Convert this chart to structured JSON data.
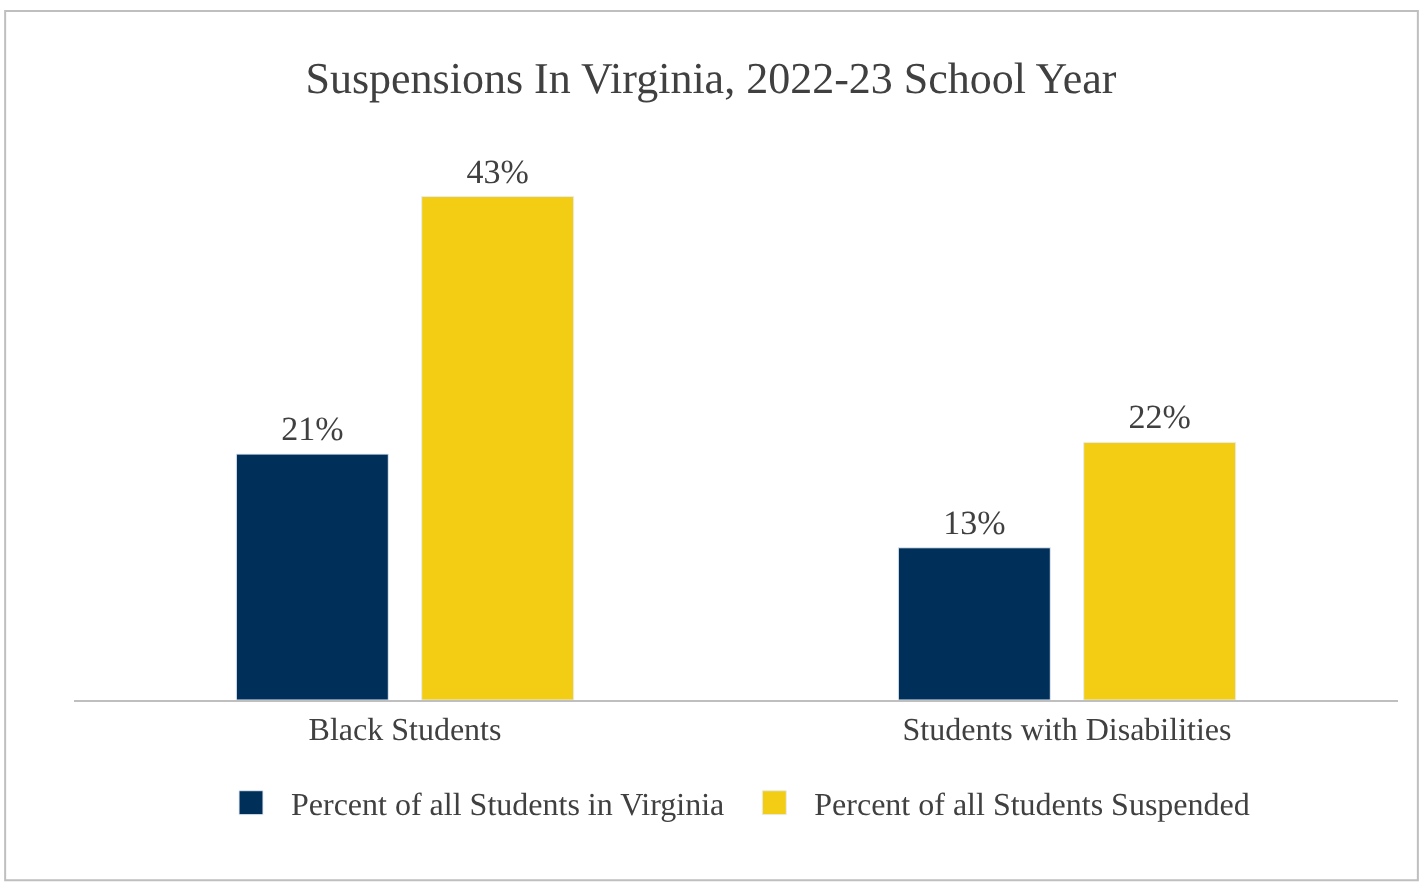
{
  "chart_data": {
    "type": "bar",
    "title": "Suspensions In Virginia, 2022-23 School Year",
    "categories": [
      "Black Students",
      "Students with Disabilities"
    ],
    "series": [
      {
        "name": "Percent of all Students in Virginia",
        "color": "#00305a",
        "values": [
          21,
          13
        ],
        "value_labels": [
          "21%",
          "13%"
        ]
      },
      {
        "name": "Percent of all Students Suspended",
        "color": "#f2cd14",
        "values": [
          43,
          22
        ],
        "value_labels": [
          "43%",
          "22%"
        ]
      }
    ],
    "legend": "bottom",
    "tick_labels": "x"
  }
}
